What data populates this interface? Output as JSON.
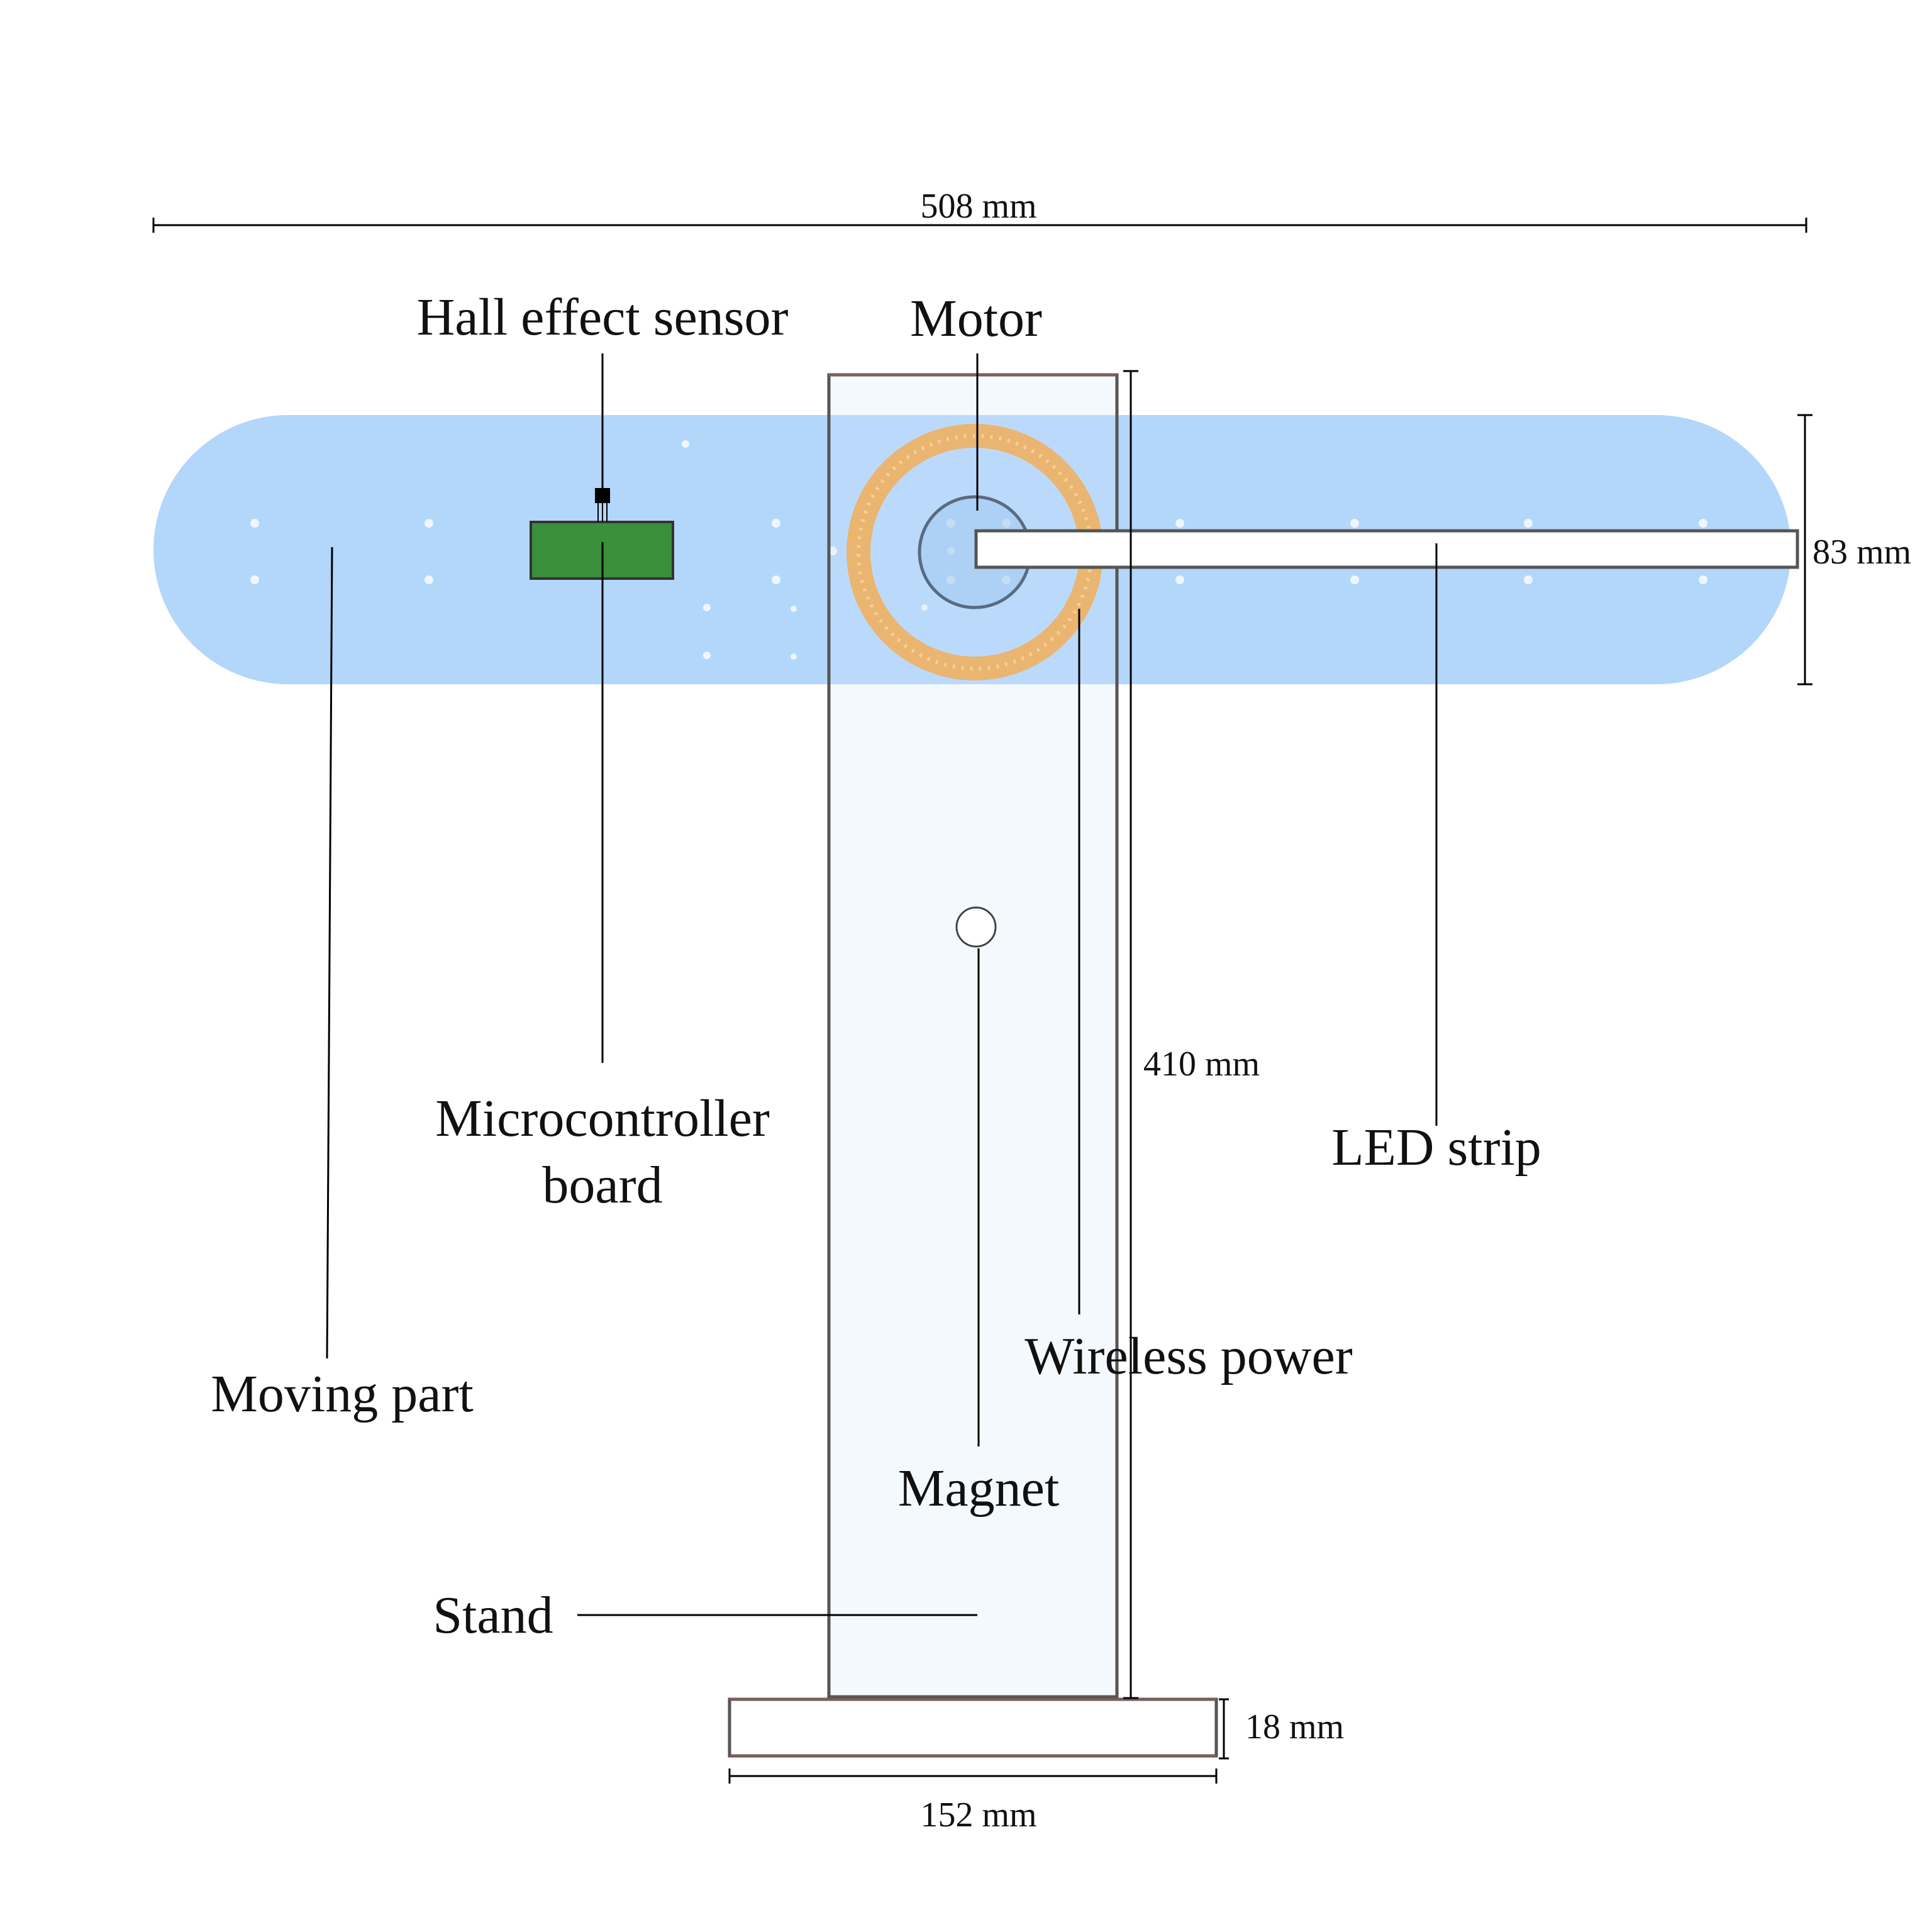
{
  "labels": {
    "hall_sensor": "Hall effect sensor",
    "motor": "Motor",
    "microcontroller_line1": "Microcontroller",
    "microcontroller_line2": "board",
    "led_strip": "LED strip",
    "moving_part": "Moving part",
    "wireless_power": "Wireless power",
    "magnet": "Magnet",
    "stand": "Stand"
  },
  "dimensions": {
    "total_width": "508 mm",
    "arm_height": "83 mm",
    "stand_height": "410 mm",
    "base_height": "18 mm",
    "base_width": "152 mm"
  },
  "colors": {
    "moving_part": "#b3d6fb",
    "coil": "#f0b060",
    "board": "#3a8f3a",
    "stand_outline": "#555555",
    "base_outline": "#8a5a5a"
  }
}
